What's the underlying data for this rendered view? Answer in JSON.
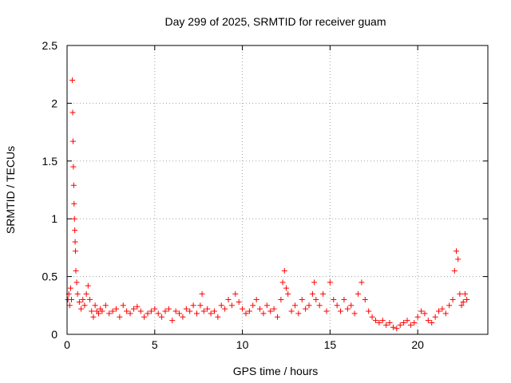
{
  "chart_data": {
    "type": "scatter",
    "title": "Day 299 of 2025, SRMTID for receiver guam",
    "xlabel": "GPS time / hours",
    "ylabel": "SRMTID / TECUs",
    "xlim": [
      0,
      24
    ],
    "ylim": [
      0,
      2.5
    ],
    "xticks": [
      0,
      5,
      10,
      15,
      20
    ],
    "xtick_labels": [
      "0",
      "5",
      "10",
      "15",
      "20"
    ],
    "yticks": [
      0,
      0.5,
      1,
      1.5,
      2,
      2.5
    ],
    "ytick_labels": [
      "0",
      "0.5",
      "1",
      "1.5",
      "2",
      "2.5"
    ],
    "grid": true,
    "marker": "+",
    "color": "#ff0000",
    "series": [
      {
        "name": "SRMTID",
        "x": [
          0.05,
          0.1,
          0.15,
          0.2,
          0.25,
          0.3,
          0.32,
          0.34,
          0.36,
          0.38,
          0.4,
          0.42,
          0.44,
          0.46,
          0.48,
          0.5,
          0.55,
          0.6,
          0.7,
          0.8,
          0.9,
          1.0,
          1.1,
          1.2,
          1.3,
          1.4,
          1.5,
          1.6,
          1.7,
          1.8,
          1.9,
          2.0,
          2.2,
          2.4,
          2.6,
          2.8,
          3.0,
          3.2,
          3.4,
          3.6,
          3.8,
          4.0,
          4.2,
          4.4,
          4.6,
          4.8,
          5.0,
          5.2,
          5.4,
          5.6,
          5.8,
          6.0,
          6.2,
          6.4,
          6.6,
          6.8,
          7.0,
          7.2,
          7.4,
          7.6,
          7.7,
          7.8,
          8.0,
          8.2,
          8.4,
          8.6,
          8.8,
          9.0,
          9.2,
          9.4,
          9.6,
          9.8,
          10.0,
          10.2,
          10.4,
          10.6,
          10.8,
          11.0,
          11.2,
          11.4,
          11.6,
          11.8,
          12.0,
          12.2,
          12.3,
          12.4,
          12.5,
          12.6,
          12.8,
          13.0,
          13.2,
          13.4,
          13.6,
          13.8,
          14.0,
          14.1,
          14.2,
          14.4,
          14.6,
          14.8,
          15.0,
          15.2,
          15.4,
          15.6,
          15.8,
          16.0,
          16.2,
          16.4,
          16.6,
          16.8,
          17.0,
          17.2,
          17.4,
          17.6,
          17.8,
          18.0,
          18.2,
          18.4,
          18.6,
          18.8,
          19.0,
          19.2,
          19.4,
          19.6,
          19.8,
          20.0,
          20.2,
          20.4,
          20.6,
          20.8,
          21.0,
          21.2,
          21.4,
          21.6,
          21.8,
          22.0,
          22.1,
          22.2,
          22.3,
          22.4,
          22.5,
          22.6,
          22.7,
          22.8
        ],
        "y": [
          0.3,
          0.35,
          0.25,
          0.4,
          0.3,
          2.2,
          1.92,
          1.67,
          1.45,
          1.29,
          1.13,
          1.0,
          0.9,
          0.8,
          0.72,
          0.55,
          0.45,
          0.35,
          0.28,
          0.22,
          0.3,
          0.25,
          0.35,
          0.42,
          0.3,
          0.2,
          0.15,
          0.25,
          0.2,
          0.18,
          0.22,
          0.2,
          0.25,
          0.18,
          0.2,
          0.22,
          0.15,
          0.25,
          0.2,
          0.18,
          0.22,
          0.24,
          0.2,
          0.15,
          0.18,
          0.2,
          0.22,
          0.18,
          0.15,
          0.2,
          0.22,
          0.12,
          0.2,
          0.18,
          0.15,
          0.22,
          0.2,
          0.25,
          0.18,
          0.25,
          0.35,
          0.2,
          0.22,
          0.18,
          0.2,
          0.15,
          0.25,
          0.22,
          0.3,
          0.25,
          0.35,
          0.28,
          0.22,
          0.18,
          0.2,
          0.25,
          0.3,
          0.22,
          0.18,
          0.25,
          0.2,
          0.22,
          0.15,
          0.3,
          0.45,
          0.55,
          0.4,
          0.35,
          0.2,
          0.25,
          0.18,
          0.3,
          0.22,
          0.25,
          0.35,
          0.45,
          0.3,
          0.25,
          0.35,
          0.2,
          0.45,
          0.3,
          0.25,
          0.2,
          0.3,
          0.22,
          0.25,
          0.18,
          0.35,
          0.45,
          0.3,
          0.2,
          0.15,
          0.12,
          0.1,
          0.12,
          0.08,
          0.1,
          0.06,
          0.05,
          0.08,
          0.1,
          0.12,
          0.08,
          0.1,
          0.15,
          0.2,
          0.18,
          0.12,
          0.1,
          0.15,
          0.2,
          0.22,
          0.18,
          0.25,
          0.3,
          0.55,
          0.72,
          0.65,
          0.35,
          0.25,
          0.28,
          0.35,
          0.3
        ]
      }
    ]
  }
}
